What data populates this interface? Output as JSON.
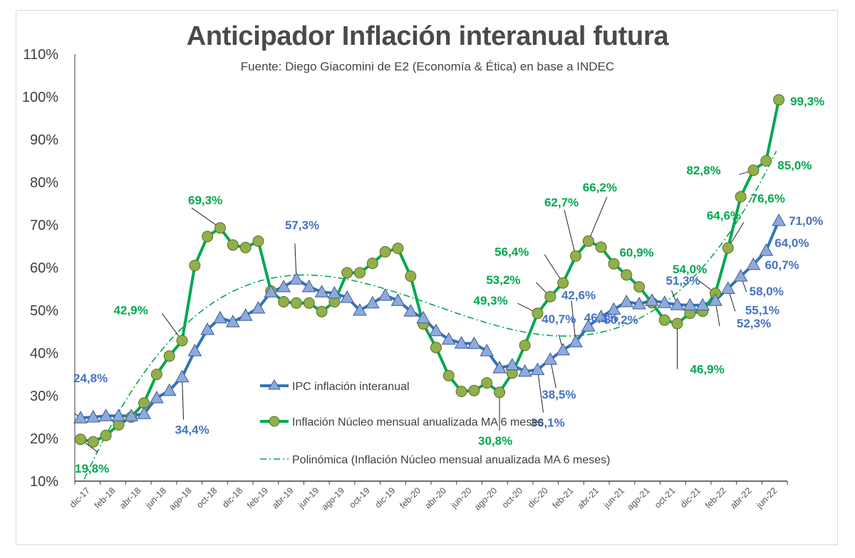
{
  "chart_data": {
    "type": "line",
    "title": "Anticipador Inflación interanual futura",
    "subtitle": "Fuente: Diego Giacomini de E2 (Economía & Ética) en base a INDEC",
    "xlabel": "",
    "ylabel": "",
    "ylim": [
      10,
      110
    ],
    "y_ticks": [
      "10%",
      "20%",
      "30%",
      "40%",
      "50%",
      "60%",
      "70%",
      "80%",
      "90%",
      "100%",
      "110%"
    ],
    "y_tick_values": [
      10,
      20,
      30,
      40,
      50,
      60,
      70,
      80,
      90,
      100,
      110
    ],
    "grid": false,
    "legend_position": "center-bottom-inside",
    "x": [
      "dic-17",
      "ene-18",
      "feb-18",
      "mar-18",
      "abr-18",
      "may-18",
      "jun-18",
      "jul-18",
      "ago-18",
      "sep-18",
      "oct-18",
      "nov-18",
      "dic-18",
      "ene-19",
      "feb-19",
      "mar-19",
      "abr-19",
      "may-19",
      "jun-19",
      "jul-19",
      "ago-19",
      "sep-19",
      "oct-19",
      "nov-19",
      "dic-19",
      "ene-20",
      "feb-20",
      "mar-20",
      "abr-20",
      "may-20",
      "jun-20",
      "jul-20",
      "ago-20",
      "sep-20",
      "oct-20",
      "nov-20",
      "dic-20",
      "ene-21",
      "feb-21",
      "mar-21",
      "abr-21",
      "may-21",
      "jun-21",
      "jul-21",
      "ago-21",
      "sep-21",
      "oct-21",
      "nov-21",
      "dic-21",
      "ene-22",
      "feb-22",
      "mar-22",
      "abr-22",
      "may-22",
      "jun-22",
      "jul-22"
    ],
    "x_tick_labels": [
      "dic-17",
      "feb-18",
      "abr-18",
      "jun-18",
      "ago-18",
      "oct-18",
      "dic-18",
      "feb-19",
      "abr-19",
      "jun-19",
      "ago-19",
      "oct-19",
      "dic-19",
      "feb-20",
      "abr-20",
      "jun-20",
      "ago-20",
      "oct-20",
      "dic-20",
      "feb-21",
      "abr-21",
      "jun-21",
      "ago-21",
      "oct-21",
      "dic-21",
      "feb-22",
      "abr-22",
      "jun-22"
    ],
    "series": [
      {
        "name": "IPC inflación interanual",
        "color": "#2e75b6",
        "marker_color": "#8eaadb",
        "marker": "triangle",
        "values": [
          24.8,
          25.0,
          25.3,
          25.3,
          25.3,
          25.8,
          29.5,
          31.2,
          34.4,
          40.5,
          45.5,
          48.2,
          47.3,
          48.8,
          50.5,
          54.3,
          55.5,
          57.3,
          55.5,
          54.3,
          54.0,
          53.0,
          50.0,
          51.7,
          53.5,
          52.3,
          49.8,
          48.2,
          45.2,
          43.2,
          42.3,
          42.2,
          40.5,
          36.5,
          37.2,
          35.7,
          36.1,
          38.5,
          40.7,
          42.6,
          46.3,
          48.5,
          50.2,
          52.0,
          51.5,
          52.3,
          51.8,
          51.3,
          51.2,
          51.2,
          52.3,
          55.1,
          58.0,
          60.7,
          64.0,
          71.0
        ]
      },
      {
        "name": "Inflación Núcleo mensual anualizada MA 6 meses",
        "color": "#00a84f",
        "marker_color": "#8fb04a",
        "marker": "circle",
        "values": [
          19.8,
          19.2,
          20.7,
          23.2,
          25.0,
          28.3,
          35.0,
          39.3,
          42.9,
          60.5,
          67.3,
          69.3,
          65.3,
          64.7,
          66.2,
          54.5,
          52.0,
          51.7,
          51.7,
          49.7,
          52.0,
          58.8,
          58.8,
          61.0,
          63.7,
          64.5,
          58.0,
          46.8,
          41.3,
          34.7,
          31.0,
          31.2,
          33.0,
          30.8,
          35.3,
          41.8,
          49.3,
          53.2,
          56.4,
          62.7,
          66.2,
          64.8,
          60.9,
          58.3,
          55.5,
          51.8,
          47.7,
          46.9,
          49.3,
          49.8,
          54.0,
          64.6,
          76.6,
          82.8,
          85.0,
          99.3
        ]
      },
      {
        "name": "Polinómica (Inflación Núcleo mensual anualizada MA 6 meses)",
        "color": "#00a84f",
        "style": "dash-dot",
        "trend_anchor_values": [
          {
            "i": 0,
            "v": 8.5
          },
          {
            "i": 15,
            "v": 57.5
          },
          {
            "i": 34,
            "v": 45.5
          },
          {
            "i": 55,
            "v": 88.5
          }
        ]
      }
    ],
    "annotations": [
      {
        "series": 0,
        "index": 0,
        "text": "24,8%"
      },
      {
        "series": 0,
        "index": 8,
        "text": "34,4%"
      },
      {
        "series": 0,
        "index": 17,
        "text": "57,3%"
      },
      {
        "series": 0,
        "index": 36,
        "text": "36,1%"
      },
      {
        "series": 0,
        "index": 37,
        "text": "38,5%"
      },
      {
        "series": 0,
        "index": 38,
        "text": "40,7%"
      },
      {
        "series": 0,
        "index": 39,
        "text": "42,6%"
      },
      {
        "series": 0,
        "index": 40,
        "text": "46,3%"
      },
      {
        "series": 0,
        "index": 42,
        "text": "50,2%"
      },
      {
        "series": 0,
        "index": 47,
        "text": "51,3%"
      },
      {
        "series": 0,
        "index": 50,
        "text": "52,3%"
      },
      {
        "series": 0,
        "index": 51,
        "text": "55,1%"
      },
      {
        "series": 0,
        "index": 52,
        "text": "58,0%"
      },
      {
        "series": 0,
        "index": 53,
        "text": "60,7%"
      },
      {
        "series": 0,
        "index": 54,
        "text": "64,0%"
      },
      {
        "series": 0,
        "index": 55,
        "text": "71,0%"
      },
      {
        "series": 1,
        "index": 0,
        "text": "19,8%"
      },
      {
        "series": 1,
        "index": 8,
        "text": "42,9%"
      },
      {
        "series": 1,
        "index": 11,
        "text": "69,3%"
      },
      {
        "series": 1,
        "index": 33,
        "text": "30,8%"
      },
      {
        "series": 1,
        "index": 36,
        "text": "49,3%"
      },
      {
        "series": 1,
        "index": 37,
        "text": "53,2%"
      },
      {
        "series": 1,
        "index": 38,
        "text": "56,4%"
      },
      {
        "series": 1,
        "index": 39,
        "text": "62,7%"
      },
      {
        "series": 1,
        "index": 40,
        "text": "66,2%"
      },
      {
        "series": 1,
        "index": 42,
        "text": "60,9%"
      },
      {
        "series": 1,
        "index": 47,
        "text": "46,9%"
      },
      {
        "series": 1,
        "index": 50,
        "text": "54,0%"
      },
      {
        "series": 1,
        "index": 51,
        "text": "64,6%"
      },
      {
        "series": 1,
        "index": 52,
        "text": "76,6%"
      },
      {
        "series": 1,
        "index": 53,
        "text": "82,8%"
      },
      {
        "series": 1,
        "index": 54,
        "text": "85,0%"
      },
      {
        "series": 1,
        "index": 55,
        "text": "99,3%"
      }
    ]
  }
}
